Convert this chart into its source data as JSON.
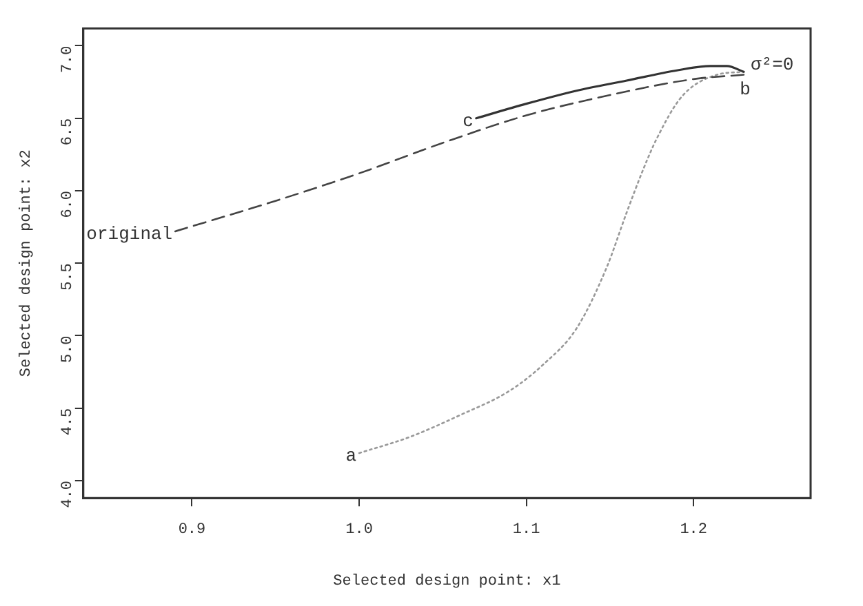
{
  "chart_data": {
    "type": "line",
    "xlabel": "Selected design point: x1",
    "ylabel": "Selected design point: x2",
    "xlim": [
      0.835,
      1.27
    ],
    "xticks": [
      0.9,
      {
        "value": 1,
        "label": "1.0"
      },
      1.1,
      1.2
    ],
    "ylim": [
      3.88,
      7.12
    ],
    "yticks": [
      {
        "value": 4,
        "label": "4.0"
      },
      4.5,
      {
        "value": 5,
        "label": "5.0"
      },
      5.5,
      {
        "value": 6,
        "label": "6.0"
      },
      6.5,
      {
        "value": 7,
        "label": "7.0"
      }
    ],
    "grid": false,
    "legend": false,
    "marker": "none",
    "series": [
      {
        "color": "#444444",
        "line_style": "dashed",
        "x": [
          0.89,
          0.95,
          1.0,
          1.05,
          1.1,
          1.15,
          1.2,
          1.23
        ],
        "values": [
          5.72,
          5.93,
          6.12,
          6.33,
          6.52,
          6.66,
          6.77,
          6.8
        ]
      },
      {
        "color": "#333333",
        "line_style": "solid",
        "x": [
          1.07,
          1.1,
          1.13,
          1.16,
          1.19,
          1.21,
          1.22,
          1.23
        ],
        "values": [
          6.5,
          6.6,
          6.69,
          6.76,
          6.83,
          6.86,
          6.86,
          6.82
        ]
      },
      {
        "color": "#999999",
        "line_style": "dotted",
        "x": [
          1.0,
          1.03,
          1.06,
          1.09,
          1.11,
          1.13,
          1.148,
          1.16,
          1.17,
          1.178,
          1.193,
          1.214,
          1.23
        ],
        "values": [
          4.19,
          4.3,
          4.45,
          4.62,
          4.8,
          5.05,
          5.47,
          5.85,
          6.15,
          6.36,
          6.65,
          6.8,
          6.82
        ]
      }
    ],
    "annotations": [
      {
        "text": "original",
        "x": 0.89,
        "y": 5.72
      },
      {
        "text": "a",
        "x": 1.0,
        "y": 4.19
      },
      {
        "text": "c",
        "x": 1.07,
        "y": 6.5
      },
      {
        "text": "b",
        "x": 1.23,
        "y": 6.82
      },
      {
        "text": "σ²=0",
        "x": 1.23,
        "y": 6.82
      }
    ]
  }
}
